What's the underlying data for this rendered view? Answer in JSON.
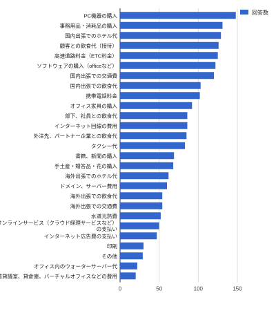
{
  "chart_data": {
    "type": "bar",
    "orientation": "horizontal",
    "title": "",
    "xlabel": "",
    "ylabel": "",
    "xlim": [
      0,
      150
    ],
    "x_ticks": [
      0,
      50,
      100,
      150
    ],
    "grid": true,
    "legend_position": "top-right",
    "color": "#3366cc",
    "series": [
      {
        "name": "回答数",
        "values": [
          148,
          131,
          129,
          126,
          125,
          122,
          120,
          103,
          102,
          92,
          86,
          86,
          85,
          83,
          69,
          68,
          62,
          60,
          54,
          54,
          52,
          50,
          47,
          30,
          29,
          22,
          20
        ]
      }
    ],
    "categories": [
      "PC機器の購入",
      "事務用品・消耗品の購入",
      "国内出張でのホテル代",
      "顧客との飲食代（接待）",
      "高速道路料金（ETC料金）",
      "ソフトウェアの購入（officeなど）",
      "国内出張での交通費",
      "国内出張での飲食代",
      "携帯電話料金",
      "オフィス家具の購入",
      "部下、社員との飲食代",
      "インターネット回線の費用",
      "外注先、パートナー企業との飲食代",
      "タクシー代",
      "書籍、新聞の購入",
      "手土産・贈答品・花の購入",
      "海外出張でのホテル代",
      "ドメイン、サーバー費用",
      "海外出張での飲食代",
      "海外出張での交通費",
      "水道光熱費",
      "オンラインサービス（クラウド経理サービスなど）の支払い",
      "インターネット広告費の支払い",
      "印刷",
      "その他",
      "オフィス内のウォーターサーバー代",
      "賃貸議室、貸倉庫、バーチャルオフィスなどの費用"
    ]
  }
}
